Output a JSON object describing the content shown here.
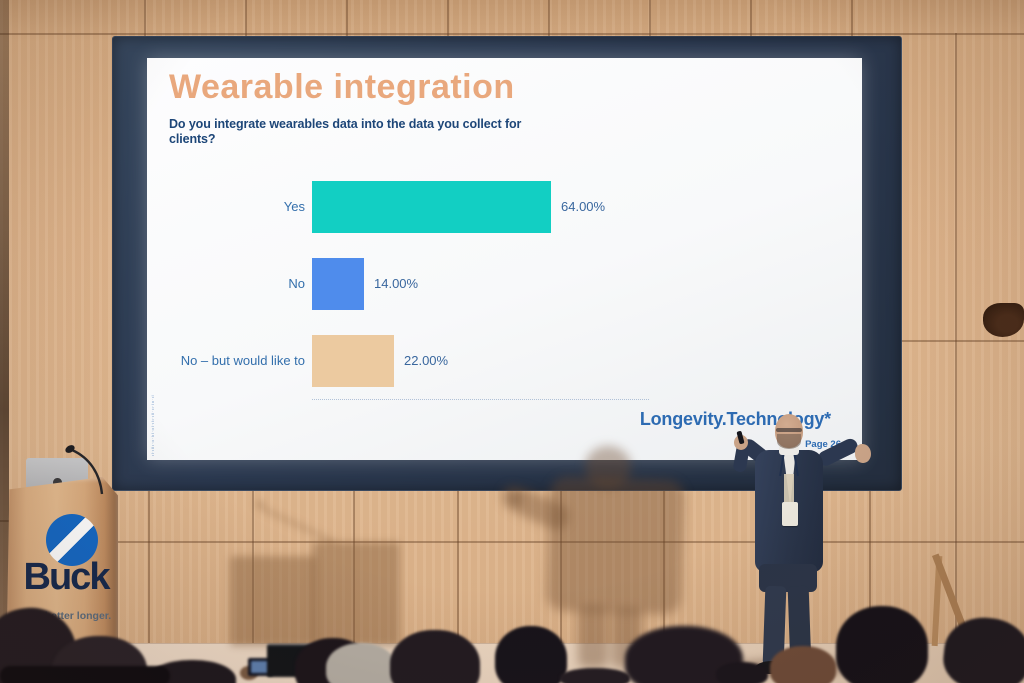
{
  "slide": {
    "title": "Wearable integration",
    "question": "Do you integrate wearables data into the data you collect for clients?",
    "footer_logo": "Longevity.Technology*",
    "page_label": "Page 26",
    "fine_print": "ıl·ıllı·ıı·lıl·ııl·ılı·ıll·ıı·lıı·ıl"
  },
  "chart_data": {
    "type": "bar",
    "orientation": "horizontal",
    "title": "Wearable integration",
    "subtitle": "Do you integrate wearables data into the data you collect for clients?",
    "categories": [
      "Yes",
      "No",
      "No – but would like to"
    ],
    "values": [
      64,
      14,
      22
    ],
    "value_labels": [
      "64.00%",
      "14.00%",
      "22.00%"
    ],
    "bar_colors": [
      "#12cfc3",
      "#4f8cec",
      "#eccaa0"
    ],
    "xlim": [
      0,
      100
    ],
    "grid": false,
    "legend": false
  },
  "podium": {
    "brand": "Buck",
    "tagline": "Live better longer."
  },
  "colors": {
    "slide_title": "#e9a87d",
    "question_text": "#1d4678",
    "category_text": "#336fac",
    "value_text": "#39679e",
    "logo_blue": "#2d6bb2",
    "buck_navy": "#16294d",
    "buck_circle_blue": "#1468c5",
    "wood_wall": "#dcb28a",
    "screen_frame": "#2b3950"
  }
}
